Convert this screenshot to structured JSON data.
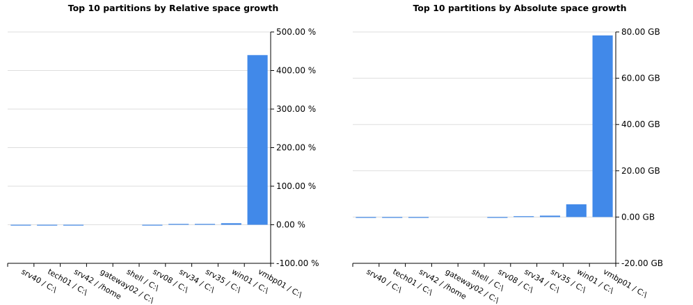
{
  "chart_data": [
    {
      "type": "bar",
      "title": "Top 10 partitions by Relative space growth",
      "categories": [
        "srv40 / C:\\",
        "tech01 / C:\\",
        "srv42 / /home",
        "gateway02 / C:\\",
        "shell / C:\\",
        "srv08 / C:\\",
        "srv34 / C:\\",
        "srv35 / C:\\",
        "win01 / C:\\",
        "vmbp01 / C:\\"
      ],
      "series": [
        {
          "values": [
            -1,
            -1,
            -1,
            0,
            0,
            -1,
            1,
            1,
            4,
            440
          ]
        }
      ],
      "ylim": [
        -100,
        500
      ],
      "yticks": [
        -100,
        0,
        100,
        200,
        300,
        400,
        500
      ],
      "ytick_labels": [
        "-100.00 %",
        "0.00 %",
        "100.00 %",
        "200.00 %",
        "300.00 %",
        "400.00 %",
        "500.00 %"
      ],
      "xlabel": "",
      "ylabel": "",
      "y_axis_position": "right",
      "grid": true,
      "bar_color": "#4189e9"
    },
    {
      "type": "bar",
      "title": "Top 10 partitions by Absolute space growth",
      "categories": [
        "srv40 / C:\\",
        "tech01 / C:\\",
        "srv42 / /home",
        "gateway02 / C:\\",
        "shell / C:\\",
        "srv08 / C:\\",
        "srv34 / C:\\",
        "srv35 / C:\\",
        "win01 / C:\\",
        "vmbp01 / C:\\"
      ],
      "series": [
        {
          "values": [
            -0.3,
            -0.3,
            -0.3,
            0,
            0,
            -0.3,
            0.3,
            0.6,
            5.5,
            78.5
          ]
        }
      ],
      "ylim": [
        -20,
        80
      ],
      "yticks": [
        -20,
        0,
        20,
        40,
        60,
        80
      ],
      "ytick_labels": [
        "-20.00 GB",
        "0.00 GB",
        "20.00 GB",
        "40.00 GB",
        "60.00 GB",
        "80.00 GB"
      ],
      "xlabel": "",
      "ylabel": "",
      "y_axis_position": "right",
      "grid": true,
      "bar_color": "#4189e9"
    }
  ]
}
